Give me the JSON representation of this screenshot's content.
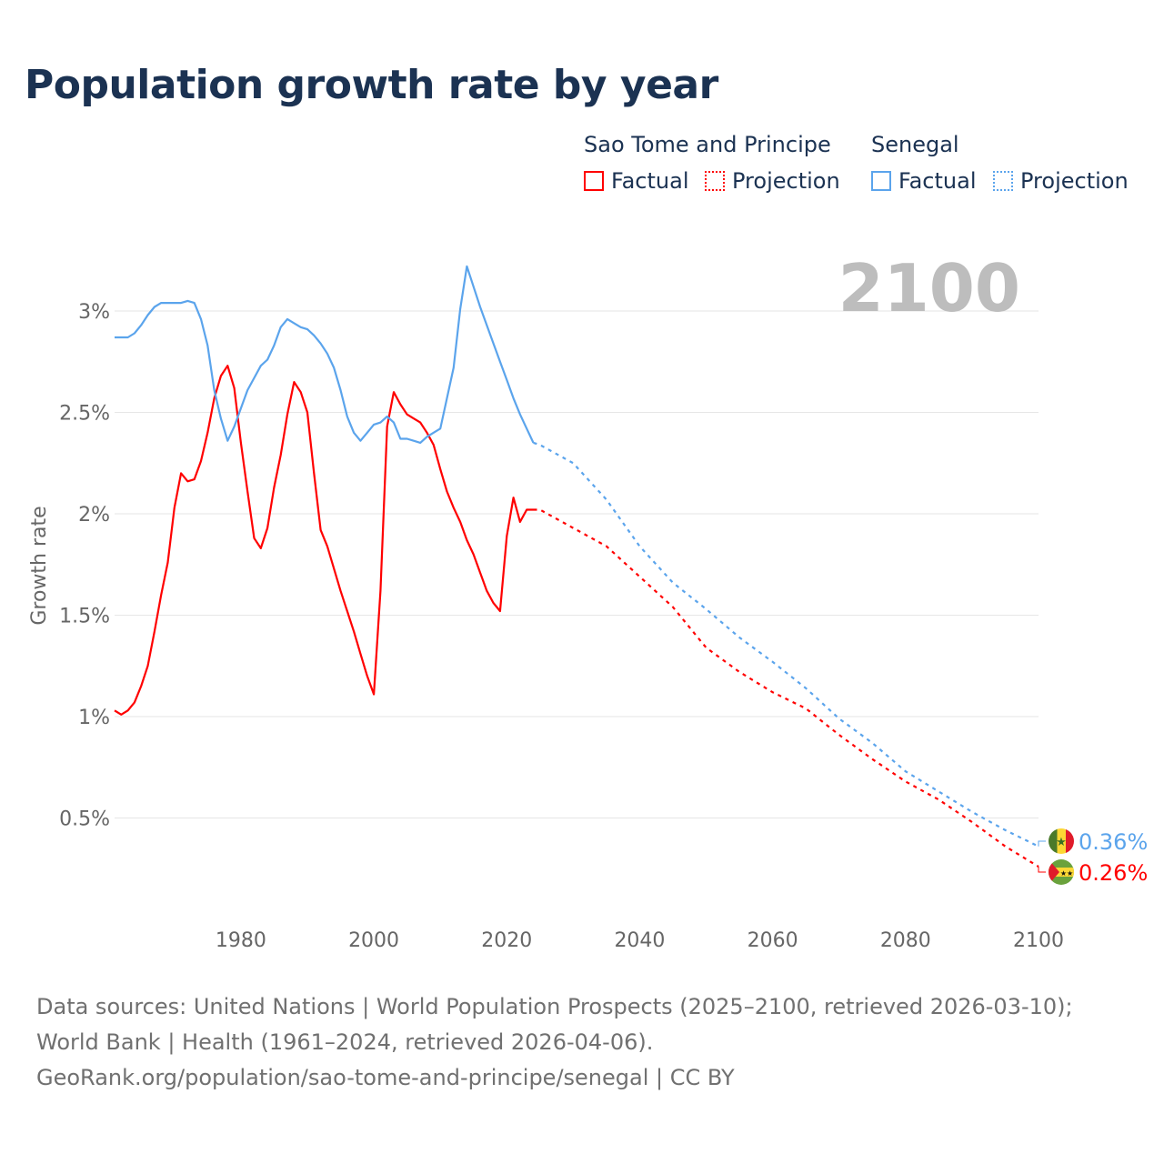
{
  "title": "Population growth rate by year",
  "legend": {
    "groups": [
      {
        "name": "Sao Tome and Principe",
        "factual": "Factual",
        "projection": "Projection",
        "color": "#ff0000"
      },
      {
        "name": "Senegal",
        "factual": "Factual",
        "projection": "Projection",
        "color": "#5ba4ec"
      }
    ]
  },
  "year_label": "2100",
  "footer": {
    "sources": "Data sources: United Nations | World Population Prospects (2025–2100, retrieved 2026-03-10); World Bank | Health (1961–2024, retrieved 2026-04-06).",
    "credit": "GeoRank.org/population/sao-tome-and-principe/senegal | CC BY"
  },
  "chart_data": {
    "type": "line",
    "title": "Population growth rate by year",
    "xlabel": "",
    "ylabel": "Growth rate",
    "xlim": [
      1961,
      2100
    ],
    "ylim": [
      0,
      3.3
    ],
    "grid": true,
    "x_ticks": [
      1980,
      2000,
      2020,
      2040,
      2060,
      2080,
      2100
    ],
    "y_ticks": [
      {
        "v": 0.5,
        "label": "0.5%"
      },
      {
        "v": 1,
        "label": "1%"
      },
      {
        "v": 1.5,
        "label": "1.5%"
      },
      {
        "v": 2,
        "label": "2%"
      },
      {
        "v": 2.5,
        "label": "2.5%"
      },
      {
        "v": 3,
        "label": "3%"
      }
    ],
    "legend_placement": "top-right",
    "series": [
      {
        "name": "Sao Tome and Principe",
        "color": "#ff0000",
        "end_label": "0.26%",
        "flag": "sao-tome-and-principe-flag",
        "factual": {
          "start": 1961,
          "values": [
            1.03,
            1.01,
            1.03,
            1.07,
            1.15,
            1.25,
            1.42,
            1.6,
            1.76,
            2.03,
            2.2,
            2.16,
            2.17,
            2.26,
            2.4,
            2.57,
            2.68,
            2.73,
            2.62,
            2.35,
            2.11,
            1.88,
            1.83,
            1.93,
            2.13,
            2.29,
            2.49,
            2.65,
            2.6,
            2.5,
            2.2,
            1.92,
            1.84,
            1.73,
            1.62,
            1.52,
            1.42,
            1.31,
            1.2,
            1.11,
            1.62,
            2.43,
            2.6,
            2.54,
            2.49,
            2.47,
            2.45,
            2.4,
            2.34,
            2.22,
            2.11,
            2.03,
            1.96,
            1.87,
            1.8,
            1.71,
            1.62,
            1.56,
            1.52,
            1.89,
            2.08,
            1.96,
            2.02,
            2.02
          ]
        },
        "projection": {
          "x": [
            2024,
            2025,
            2030,
            2035,
            2040,
            2045,
            2050,
            2055,
            2060,
            2065,
            2070,
            2075,
            2080,
            2085,
            2090,
            2095,
            2100
          ],
          "values": [
            2.02,
            2.02,
            1.93,
            1.84,
            1.69,
            1.54,
            1.34,
            1.22,
            1.12,
            1.04,
            0.91,
            0.79,
            0.68,
            0.59,
            0.48,
            0.36,
            0.26
          ]
        }
      },
      {
        "name": "Senegal",
        "color": "#5ba4ec",
        "end_label": "0.36%",
        "flag": "senegal-flag",
        "factual": {
          "start": 1961,
          "values": [
            2.87,
            2.87,
            2.87,
            2.89,
            2.93,
            2.98,
            3.02,
            3.04,
            3.04,
            3.04,
            3.04,
            3.05,
            3.04,
            2.96,
            2.83,
            2.61,
            2.47,
            2.36,
            2.43,
            2.52,
            2.61,
            2.67,
            2.73,
            2.76,
            2.83,
            2.92,
            2.96,
            2.94,
            2.92,
            2.91,
            2.88,
            2.84,
            2.79,
            2.72,
            2.61,
            2.48,
            2.4,
            2.36,
            2.4,
            2.44,
            2.45,
            2.48,
            2.45,
            2.37,
            2.37,
            2.36,
            2.35,
            2.38,
            2.4,
            2.42,
            2.57,
            2.72,
            3.01,
            3.22,
            3.12,
            3.02,
            2.93,
            2.84,
            2.75,
            2.66,
            2.57,
            2.49,
            2.42,
            2.35
          ]
        },
        "projection": {
          "x": [
            2024,
            2025,
            2030,
            2035,
            2040,
            2045,
            2050,
            2055,
            2060,
            2065,
            2070,
            2075,
            2080,
            2085,
            2090,
            2095,
            2100
          ],
          "values": [
            2.35,
            2.34,
            2.25,
            2.07,
            1.84,
            1.66,
            1.53,
            1.39,
            1.27,
            1.14,
            0.99,
            0.87,
            0.73,
            0.63,
            0.53,
            0.44,
            0.36
          ]
        }
      }
    ]
  }
}
